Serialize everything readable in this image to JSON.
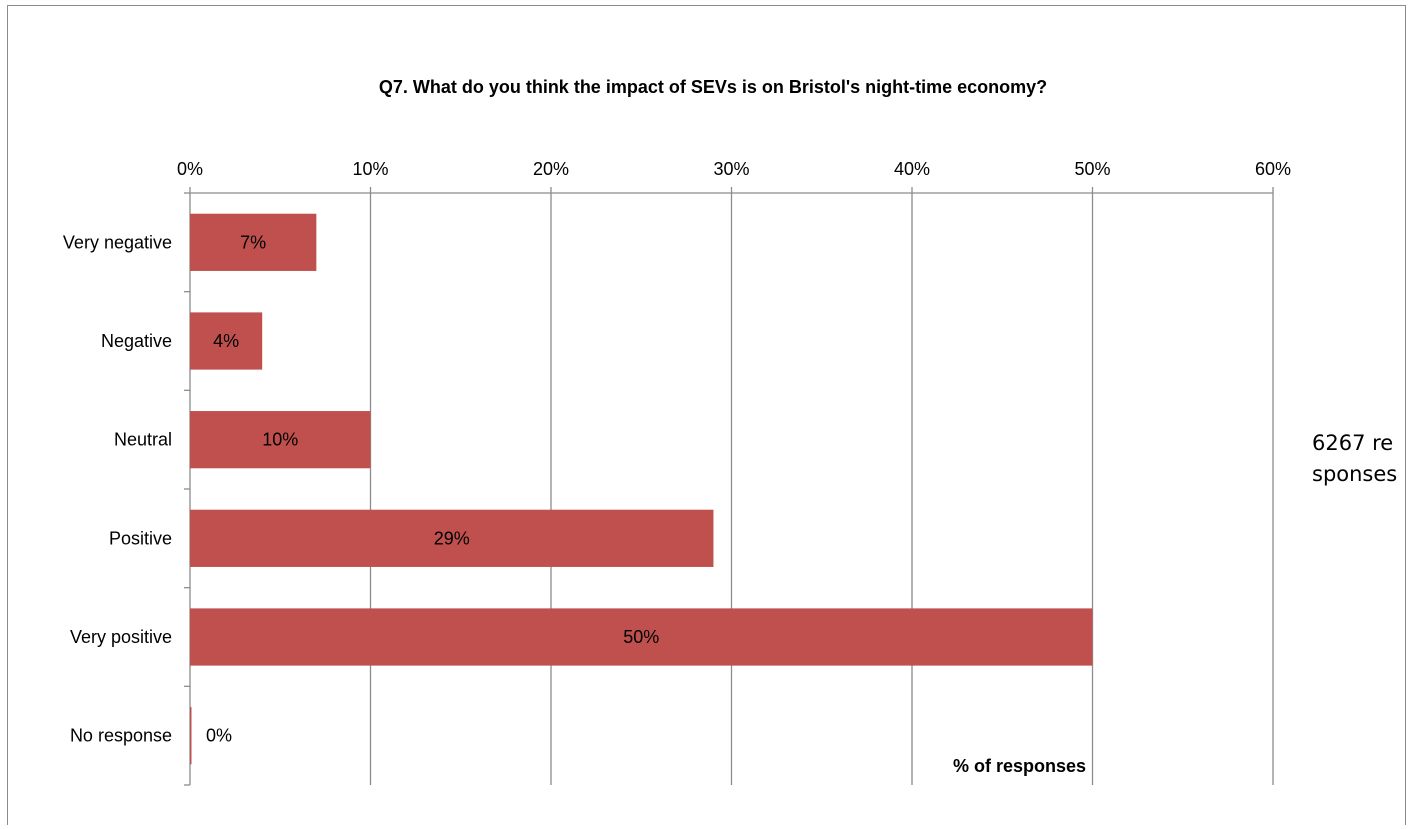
{
  "chart_data": {
    "type": "bar",
    "orientation": "horizontal",
    "title": "Q7. What do you think the impact of SEVs is on Bristol's night-time economy?",
    "categories": [
      "Very negative",
      "Negative",
      "Neutral",
      "Positive",
      "Very positive",
      "No response"
    ],
    "values": [
      7,
      4,
      10,
      29,
      50,
      0
    ],
    "data_labels": [
      "7%",
      "4%",
      "10%",
      "29%",
      "50%",
      "0%"
    ],
    "xaxis_ticks": [
      "0%",
      "10%",
      "20%",
      "30%",
      "40%",
      "50%",
      "60%"
    ],
    "xlim": [
      0,
      60
    ],
    "xlabel": "% of responses",
    "ylabel": "",
    "grid": true,
    "x_axis_position": "top",
    "bar_color": "#c0504d"
  },
  "note": "6267 responses"
}
